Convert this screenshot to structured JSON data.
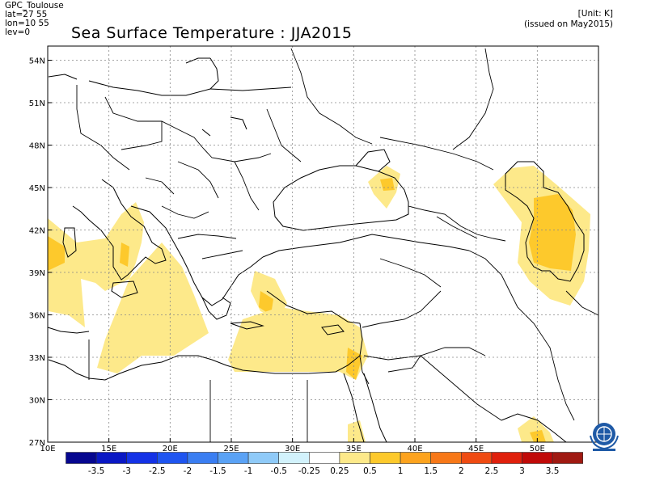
{
  "header": {
    "center": "GPC_Toulouse",
    "lat_range": "lat=27 55",
    "lon_range": "lon=10 55",
    "level": "lev=0",
    "title": "Sea Surface Temperature : JJA2015",
    "unit": "[Unit: K]",
    "issued": "(issued on May2015)"
  },
  "map": {
    "lat_ticks": [
      "54N",
      "51N",
      "48N",
      "45N",
      "42N",
      "39N",
      "36N",
      "33N",
      "30N",
      "27N"
    ],
    "lon_ticks": [
      "10E",
      "15E",
      "20E",
      "25E",
      "30E",
      "35E",
      "40E",
      "45E",
      "50E"
    ],
    "grid": true,
    "anomaly_regions": [
      {
        "name": "Tyrrhenian / Ligurian Sea",
        "category": "0.25 to 0.5"
      },
      {
        "name": "Central Mediterranean / Ionian Sea",
        "category": "0.25 to 0.5"
      },
      {
        "name": "Eastern Mediterranean / Levant",
        "category": "0.25 to 0.5"
      },
      {
        "name": "Aegean Sea",
        "category": "0.25 to 0.5"
      },
      {
        "name": "Black Sea (Kerch area)",
        "category": "0.25 to 0.5"
      },
      {
        "name": "Caspian Sea",
        "category": "0.5 to 1"
      },
      {
        "name": "Persian Gulf",
        "category": "0.25 to 0.5"
      }
    ]
  },
  "colorbar": {
    "labels": [
      "-3.5",
      "-3",
      "-2.5",
      "-2",
      "-1.5",
      "-1",
      "-0.5",
      "-0.25",
      "0.25",
      "0.5",
      "1",
      "1.5",
      "2",
      "2.5",
      "3",
      "3.5"
    ],
    "colors": [
      "#06078f",
      "#0a18c4",
      "#1432e6",
      "#1f55f0",
      "#3a7ef2",
      "#5aa2f5",
      "#8fcaf8",
      "#d2f2fc",
      "#ffffff",
      "#fde98a",
      "#fdc92c",
      "#fda31e",
      "#f77818",
      "#ef4b12",
      "#e0200c",
      "#c00a08",
      "#a01a12"
    ]
  },
  "logo": {
    "label": "WMO"
  }
}
